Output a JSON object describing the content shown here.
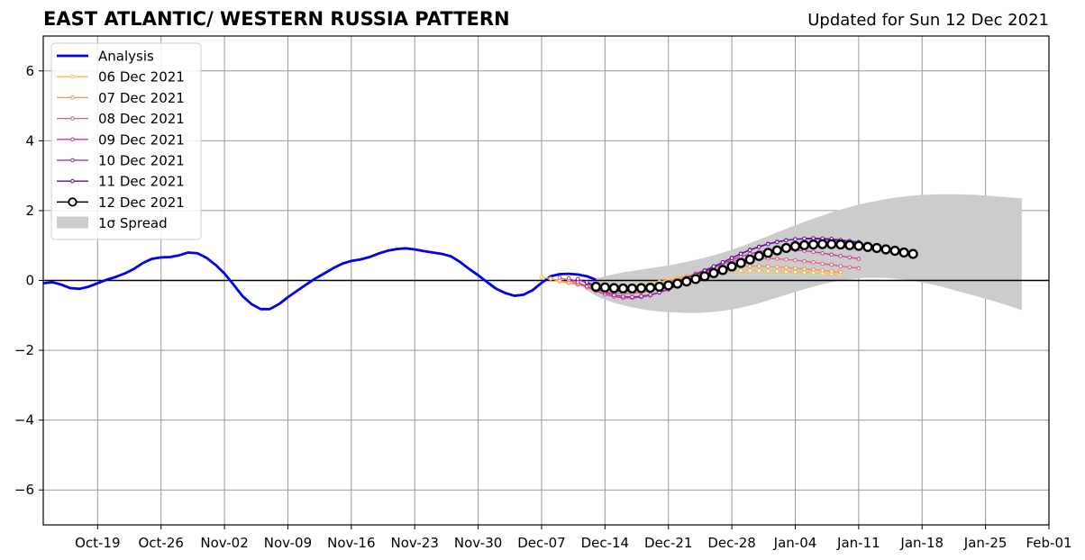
{
  "title": "EAST ATLANTIC/ WESTERN RUSSIA PATTERN",
  "subtitle": "Updated for Sun 12 Dec 2021",
  "colors": {
    "analysis": "#0000ee",
    "spread": "#cccccc",
    "zero_line": "#000000",
    "grid": "#999999",
    "forecast_06": "#f9c23c",
    "forecast_07": "#f5934c",
    "forecast_08": "#dc5f7e",
    "forecast_09": "#c13c93",
    "forecast_10": "#9c1fb0",
    "forecast_11": "#5e0aa1",
    "forecast_12": "#000000"
  },
  "chart_data": {
    "type": "line",
    "title": "EAST ATLANTIC/ WESTERN RUSSIA PATTERN",
    "subtitle": "Updated for Sun 12 Dec 2021",
    "xlabel": "",
    "ylabel": "",
    "xlim": [
      "2021-10-13",
      "2022-02-01"
    ],
    "ylim": [
      -7,
      7
    ],
    "grid": true,
    "legend_position": "top-left",
    "xticks": [
      "2021-10-19",
      "2021-10-26",
      "2021-11-02",
      "2021-11-09",
      "2021-11-16",
      "2021-11-23",
      "2021-11-30",
      "2021-12-07",
      "2021-12-14",
      "2021-12-21",
      "2021-12-28",
      "2022-01-04",
      "2022-01-11",
      "2022-01-18",
      "2022-01-25",
      "2022-02-01"
    ],
    "xtick_labels": [
      "Oct-19",
      "Oct-26",
      "Nov-02",
      "Nov-09",
      "Nov-16",
      "Nov-23",
      "Nov-30",
      "Dec-07",
      "Dec-14",
      "Dec-21",
      "Dec-28",
      "Jan-04",
      "Jan-11",
      "Jan-18",
      "Jan-25",
      "Feb-01"
    ],
    "yticks": [
      -6,
      -4,
      -2,
      0,
      2,
      4,
      6
    ],
    "ytick_labels": [
      "−6",
      "−4",
      "−2",
      "0",
      "2",
      "4",
      "6"
    ],
    "legend": [
      {
        "label": "Analysis",
        "key": "analysis",
        "style": "thick"
      },
      {
        "label": "06 Dec 2021",
        "key": "forecast_06",
        "style": "small"
      },
      {
        "label": "07 Dec 2021",
        "key": "forecast_07",
        "style": "small"
      },
      {
        "label": "08 Dec 2021",
        "key": "forecast_08",
        "style": "small"
      },
      {
        "label": "09 Dec 2021",
        "key": "forecast_09",
        "style": "small"
      },
      {
        "label": "10 Dec 2021",
        "key": "forecast_10",
        "style": "small"
      },
      {
        "label": "11 Dec 2021",
        "key": "forecast_11",
        "style": "small"
      },
      {
        "label": "12 Dec 2021",
        "key": "forecast_12",
        "style": "big"
      },
      {
        "label": "1σ Spread",
        "key": "spread",
        "style": "patch"
      }
    ],
    "analysis": {
      "name": "Analysis",
      "start": "2021-10-13",
      "values": [
        -0.08,
        -0.05,
        -0.12,
        -0.22,
        -0.24,
        -0.18,
        -0.08,
        0.02,
        0.1,
        0.2,
        0.33,
        0.5,
        0.62,
        0.66,
        0.67,
        0.72,
        0.8,
        0.78,
        0.65,
        0.45,
        0.2,
        -0.12,
        -0.45,
        -0.68,
        -0.82,
        -0.82,
        -0.68,
        -0.48,
        -0.3,
        -0.12,
        0.05,
        0.2,
        0.35,
        0.48,
        0.56,
        0.6,
        0.67,
        0.77,
        0.85,
        0.9,
        0.92,
        0.89,
        0.84,
        0.8,
        0.76,
        0.69,
        0.53,
        0.33,
        0.15,
        -0.05,
        -0.24,
        -0.36,
        -0.44,
        -0.41,
        -0.28,
        -0.07,
        0.12,
        0.18,
        0.19,
        0.17,
        0.12,
        0.02
      ]
    },
    "forecasts": [
      {
        "name": "06 Dec 2021",
        "key": "forecast_06",
        "start": "2021-12-07",
        "values": [
          0.1,
          0.05,
          -0.03,
          -0.08,
          -0.12,
          -0.15,
          -0.18,
          -0.2,
          -0.2,
          -0.19,
          -0.16,
          -0.13,
          -0.09,
          -0.04,
          0.02,
          0.08,
          0.13,
          0.18,
          0.21,
          0.24,
          0.26,
          0.27,
          0.28,
          0.28,
          0.28,
          0.27,
          0.26,
          0.25,
          0.24,
          0.23,
          0.22,
          0.21,
          0.2,
          0.19
        ]
      },
      {
        "name": "07 Dec 2021",
        "key": "forecast_07",
        "start": "2021-12-08",
        "values": [
          0.05,
          0.0,
          -0.06,
          -0.12,
          -0.17,
          -0.2,
          -0.22,
          -0.23,
          -0.23,
          -0.21,
          -0.18,
          -0.14,
          -0.09,
          -0.03,
          0.05,
          0.12,
          0.18,
          0.24,
          0.3,
          0.34,
          0.38,
          0.4,
          0.41,
          0.41,
          0.4,
          0.39,
          0.37,
          0.35,
          0.33,
          0.31,
          0.29,
          0.26,
          0.24
        ]
      },
      {
        "name": "08 Dec 2021",
        "key": "forecast_08",
        "start": "2021-12-09",
        "values": [
          0.08,
          0.01,
          -0.1,
          -0.2,
          -0.28,
          -0.33,
          -0.36,
          -0.38,
          -0.37,
          -0.34,
          -0.29,
          -0.22,
          -0.13,
          -0.03,
          0.08,
          0.2,
          0.3,
          0.4,
          0.48,
          0.55,
          0.6,
          0.62,
          0.63,
          0.63,
          0.62,
          0.6,
          0.58,
          0.55,
          0.52,
          0.48,
          0.45,
          0.41,
          0.38,
          0.35
        ]
      },
      {
        "name": "09 Dec 2021",
        "key": "forecast_09",
        "start": "2021-12-10",
        "values": [
          0.06,
          -0.05,
          -0.17,
          -0.3,
          -0.4,
          -0.46,
          -0.5,
          -0.5,
          -0.48,
          -0.43,
          -0.35,
          -0.26,
          -0.15,
          -0.03,
          0.1,
          0.23,
          0.36,
          0.48,
          0.59,
          0.68,
          0.76,
          0.82,
          0.86,
          0.88,
          0.88,
          0.87,
          0.85,
          0.82,
          0.78,
          0.74,
          0.7,
          0.66,
          0.62
        ]
      },
      {
        "name": "10 Dec 2021",
        "key": "forecast_10",
        "start": "2021-12-11",
        "values": [
          0.04,
          -0.08,
          -0.22,
          -0.34,
          -0.42,
          -0.46,
          -0.47,
          -0.45,
          -0.41,
          -0.34,
          -0.25,
          -0.15,
          -0.03,
          0.1,
          0.24,
          0.38,
          0.52,
          0.65,
          0.77,
          0.88,
          0.97,
          1.05,
          1.11,
          1.15,
          1.18,
          1.19,
          1.19,
          1.18,
          1.16,
          1.13,
          1.1,
          1.06
        ]
      },
      {
        "name": "11 Dec 2021",
        "key": "forecast_11",
        "start": "2021-12-12",
        "values": [
          -0.05,
          -0.16,
          -0.25,
          -0.3,
          -0.31,
          -0.3,
          -0.27,
          -0.23,
          -0.17,
          -0.1,
          -0.02,
          0.07,
          0.17,
          0.28,
          0.4,
          0.52,
          0.64,
          0.76,
          0.87,
          0.96,
          1.04,
          1.1,
          1.15,
          1.18,
          1.2,
          1.21,
          1.2,
          1.19,
          1.16,
          1.13,
          1.1
        ]
      },
      {
        "name": "12 Dec 2021",
        "key": "forecast_12",
        "start": "2021-12-13",
        "values": [
          -0.18,
          -0.2,
          -0.22,
          -0.23,
          -0.23,
          -0.22,
          -0.21,
          -0.18,
          -0.14,
          -0.09,
          -0.03,
          0.04,
          0.12,
          0.21,
          0.3,
          0.4,
          0.5,
          0.6,
          0.7,
          0.79,
          0.86,
          0.93,
          0.98,
          1.01,
          1.03,
          1.04,
          1.04,
          1.03,
          1.01,
          0.99,
          0.96,
          0.93,
          0.89,
          0.85,
          0.8,
          0.76
        ]
      }
    ],
    "spread": {
      "name": "1σ Spread",
      "start": "2021-12-12",
      "upper": [
        -0.05,
        0.05,
        0.12,
        0.18,
        0.23,
        0.27,
        0.31,
        0.35,
        0.39,
        0.43,
        0.48,
        0.53,
        0.59,
        0.65,
        0.72,
        0.8,
        0.88,
        0.97,
        1.07,
        1.17,
        1.27,
        1.38,
        1.48,
        1.58,
        1.68,
        1.77,
        1.86,
        1.95,
        2.03,
        2.1,
        2.17,
        2.23,
        2.28,
        2.33,
        2.37,
        2.4,
        2.43,
        2.45,
        2.46,
        2.47,
        2.47,
        2.47,
        2.46,
        2.45,
        2.43,
        2.41,
        2.39,
        2.37,
        2.35
      ],
      "lower": [
        -0.28,
        -0.44,
        -0.55,
        -0.64,
        -0.71,
        -0.77,
        -0.82,
        -0.86,
        -0.89,
        -0.91,
        -0.92,
        -0.93,
        -0.93,
        -0.92,
        -0.9,
        -0.87,
        -0.83,
        -0.78,
        -0.72,
        -0.65,
        -0.57,
        -0.49,
        -0.41,
        -0.33,
        -0.25,
        -0.18,
        -0.11,
        -0.05,
        0.0,
        0.03,
        0.06,
        0.08,
        0.08,
        0.07,
        0.05,
        0.03,
        -0.01,
        -0.06,
        -0.11,
        -0.17,
        -0.24,
        -0.31,
        -0.38,
        -0.45,
        -0.53,
        -0.6,
        -0.68,
        -0.76,
        -0.85
      ]
    }
  }
}
